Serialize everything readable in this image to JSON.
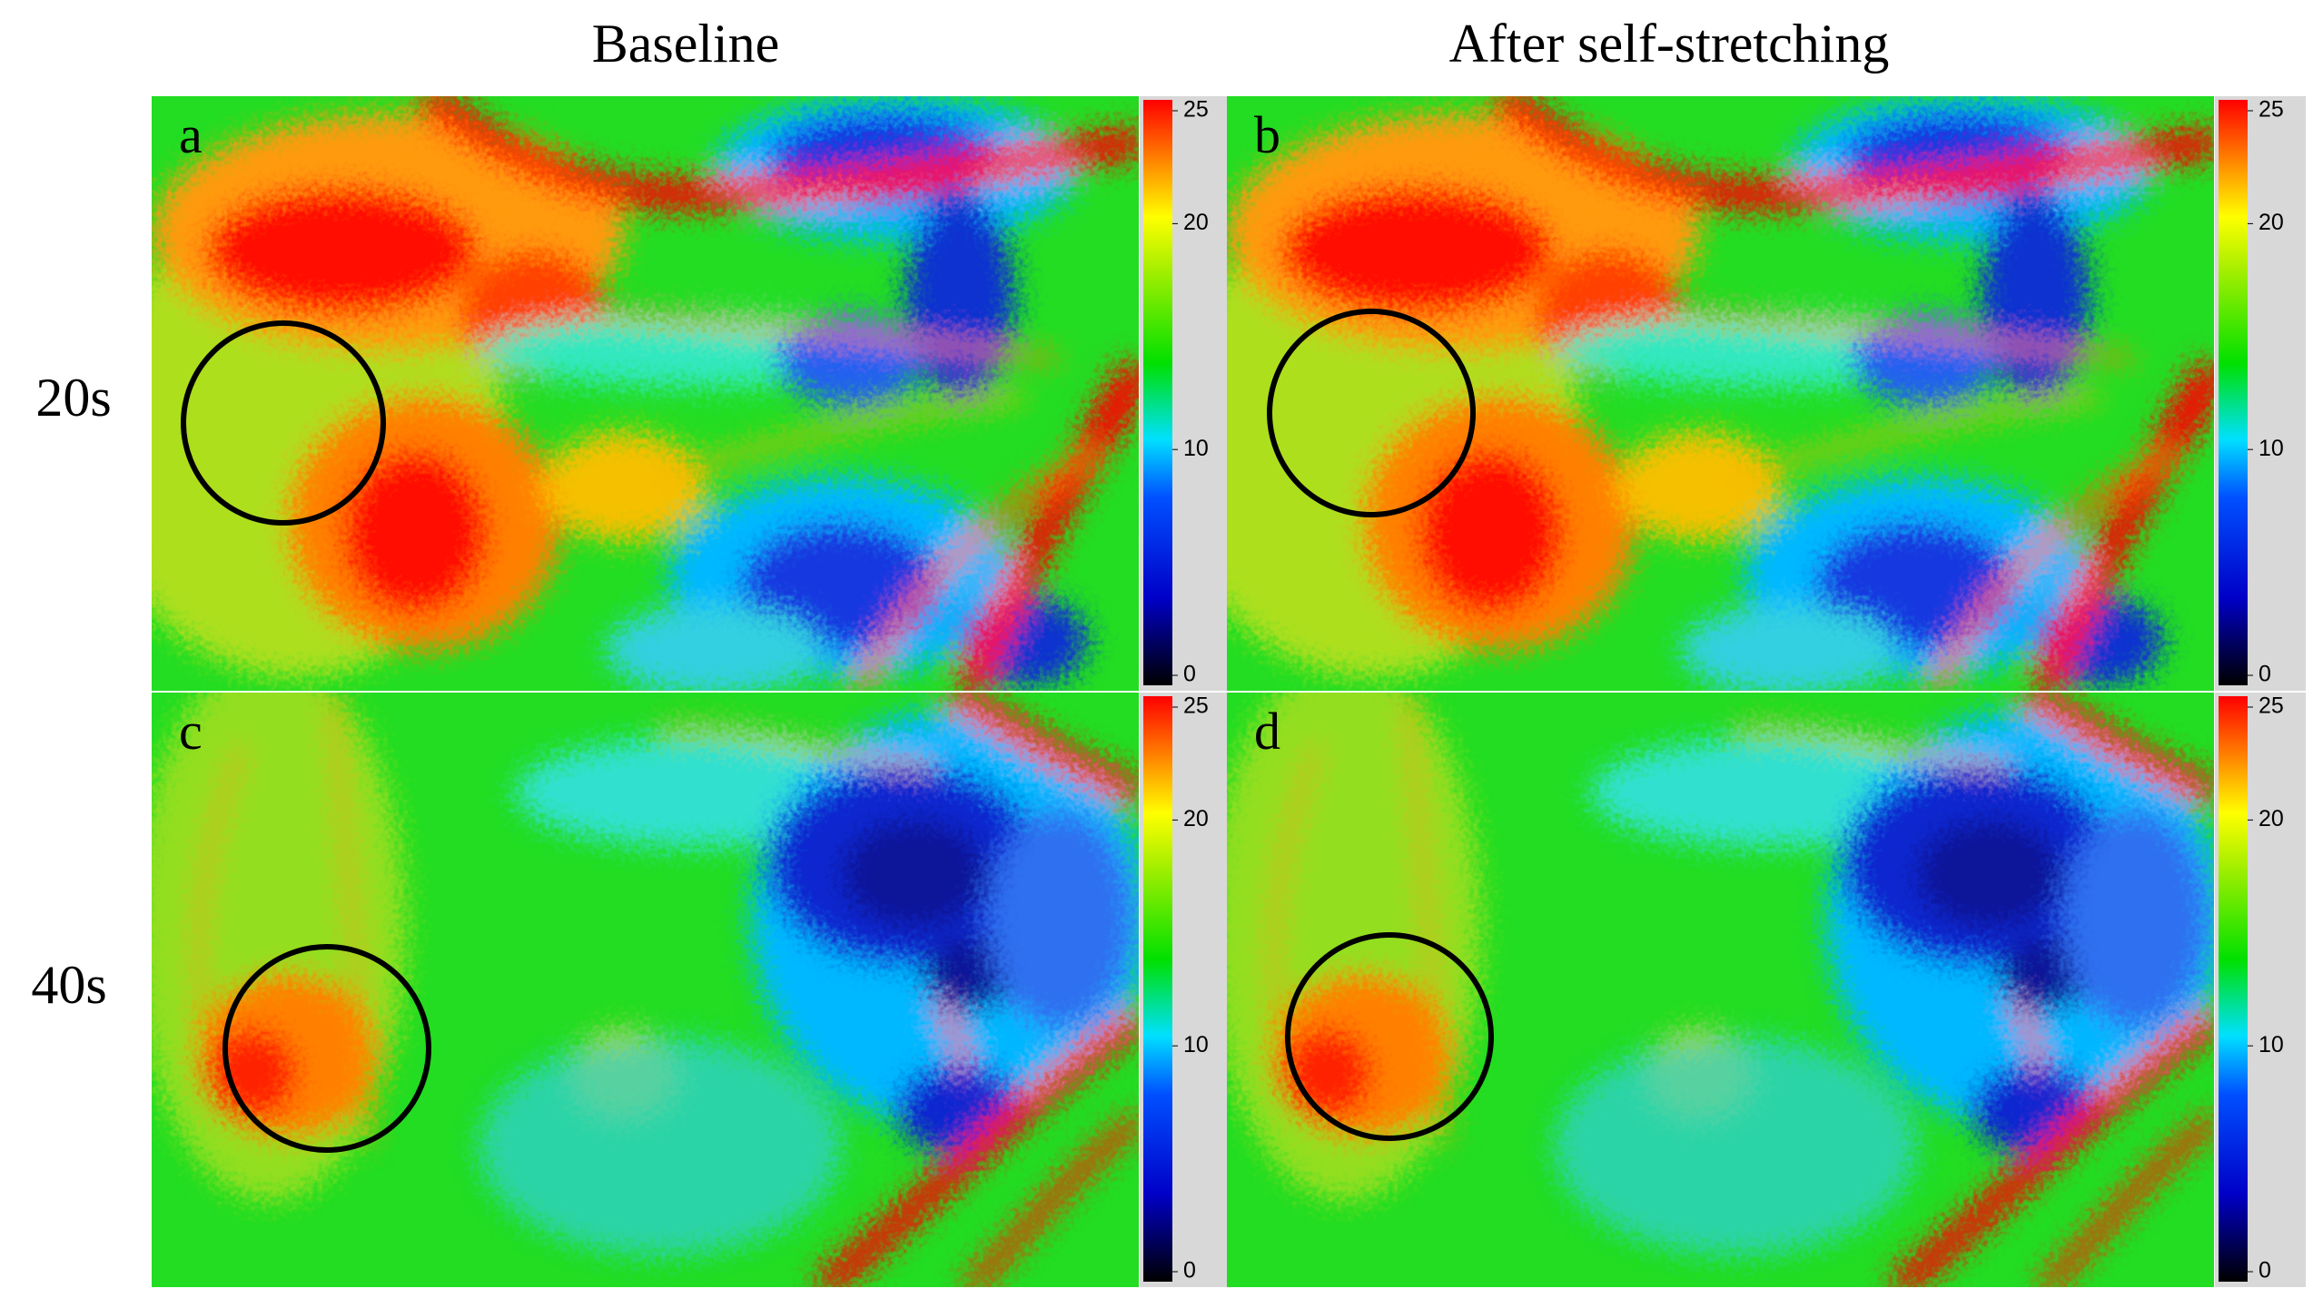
{
  "header": {
    "columns": [
      "Baseline",
      "After self-stretching"
    ],
    "rows": [
      "20s",
      "40s"
    ]
  },
  "panels": [
    {
      "label": "a",
      "colorbar": {
        "range": [
          0,
          25
        ],
        "ticks": [
          0,
          10,
          20,
          25
        ]
      }
    },
    {
      "label": "b",
      "colorbar": {
        "range": [
          0,
          25
        ],
        "ticks": [
          0,
          10,
          20,
          25
        ]
      }
    },
    {
      "label": "c",
      "colorbar": {
        "range": [
          0,
          25
        ],
        "ticks": [
          0,
          10,
          20,
          25
        ]
      }
    },
    {
      "label": "d",
      "colorbar": {
        "range": [
          0,
          25
        ],
        "ticks": [
          0,
          10,
          20,
          25
        ]
      }
    }
  ]
}
